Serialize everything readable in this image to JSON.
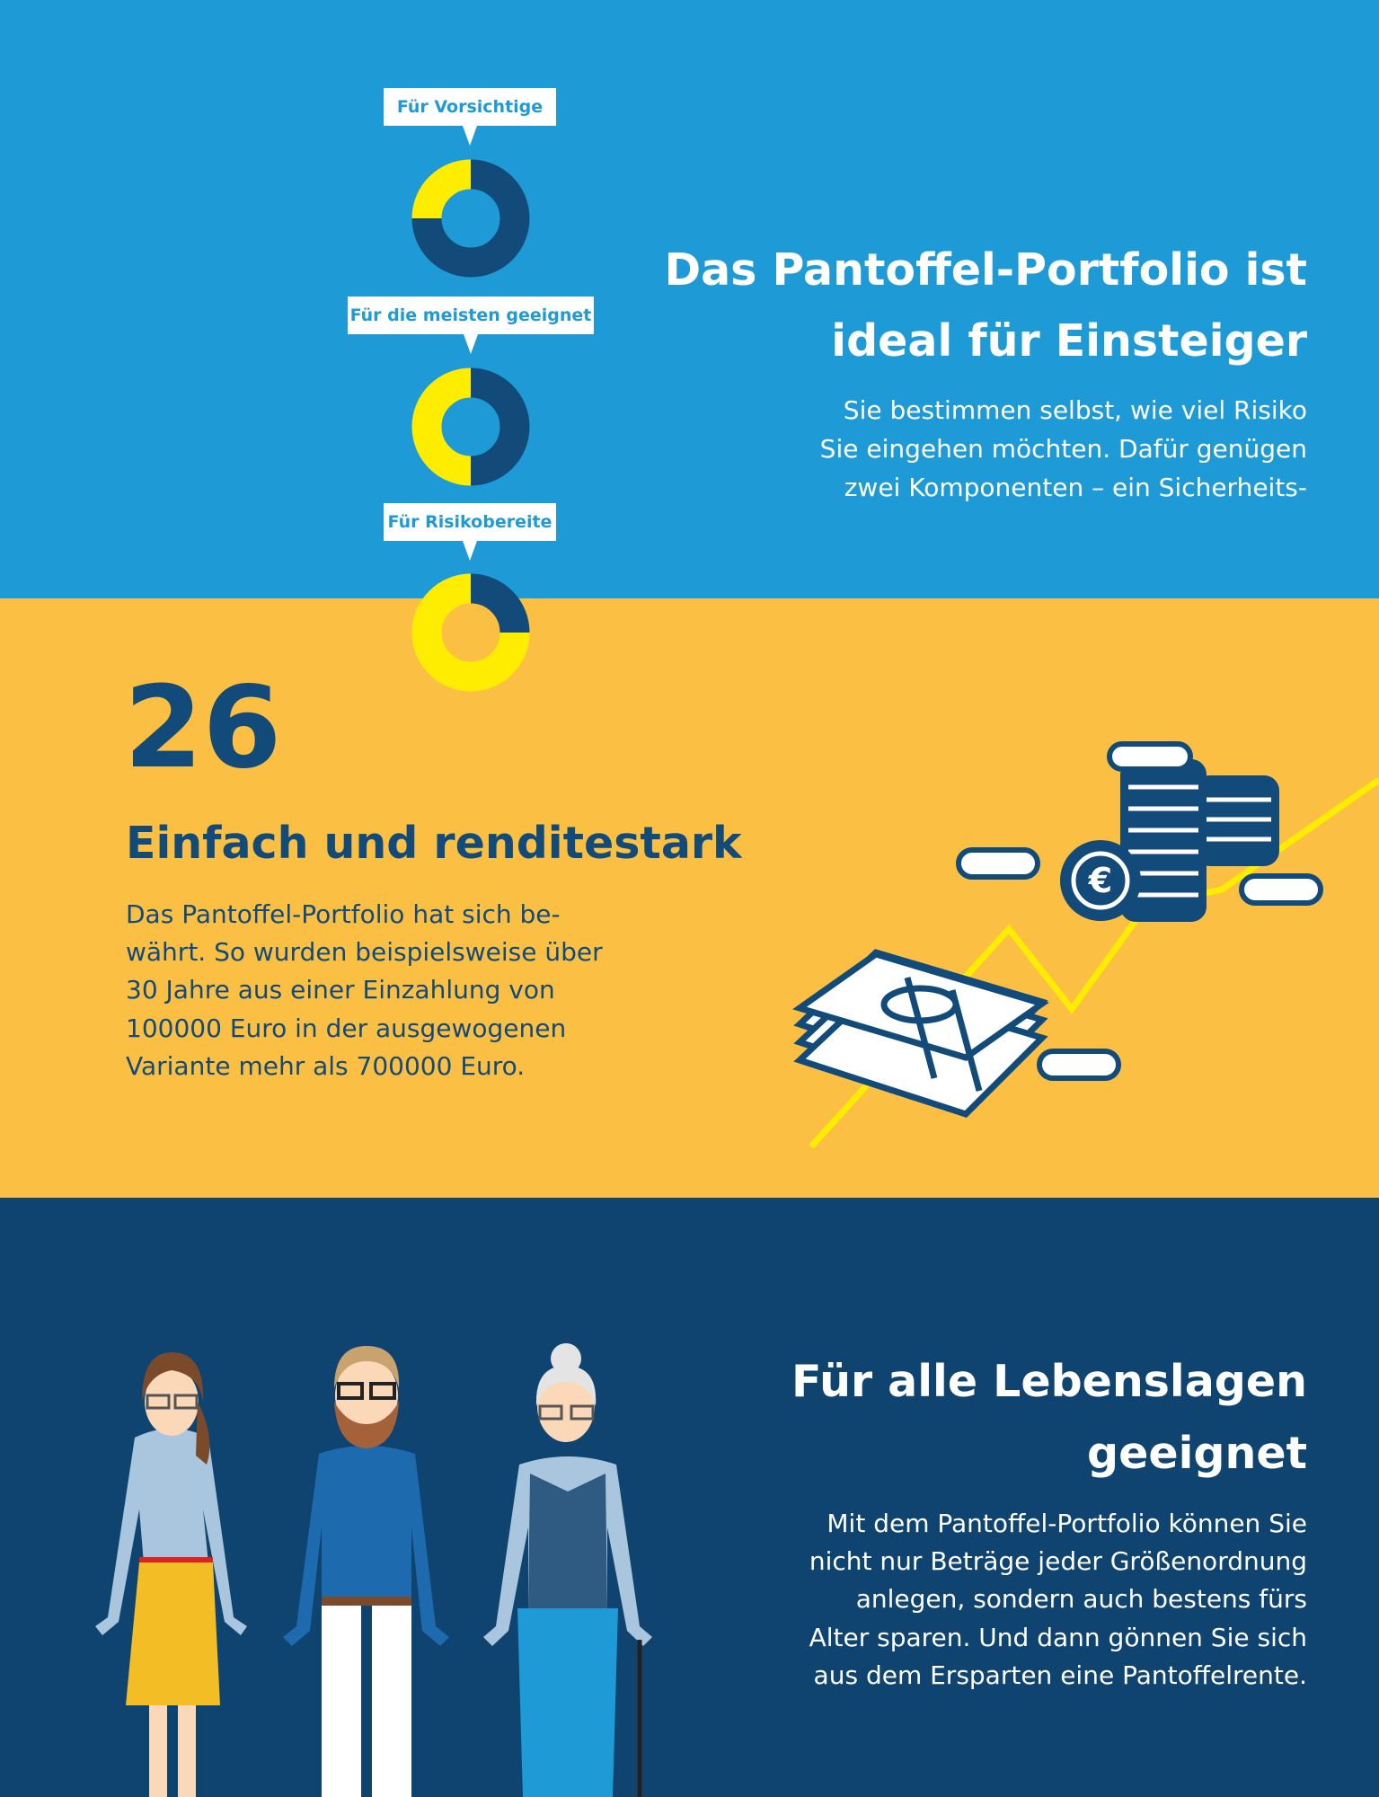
{
  "colors": {
    "blue": "#1E9BD7",
    "yellow_bg": "#FBC043",
    "navy": "#0F4470",
    "donut_navy": "#124A7A",
    "donut_yellow": "#FFED00"
  },
  "portfolio": {
    "donuts": [
      {
        "label": "Für Vorsichtige",
        "yellow_share": 0.25,
        "navy_share": 0.75
      },
      {
        "label": "Für die meisten geeignet",
        "yellow_share": 0.5,
        "navy_share": 0.5
      },
      {
        "label": "Für Risikobereite",
        "yellow_share": 0.75,
        "navy_share": 0.25
      }
    ],
    "title_lines": [
      "Das Pantoffel-Portfolio ist",
      "ideal für Einsteiger"
    ],
    "body_lines": [
      "Sie bestimmen selbst, wie viel Risiko",
      "Sie eingehen möchten. Dafür genügen",
      "zwei Komponenten – ein Sicherheits-"
    ]
  },
  "returns": {
    "number": "26",
    "title": "Einfach und renditestark",
    "body_lines": [
      "Das Pantoffel-Portfolio hat sich be-",
      "währt. So wurden beispielsweise über",
      "30 Jahre aus einer Einzahlung von",
      "100000 Euro in der ausgewogenen",
      "Variante mehr als 700000 Euro."
    ],
    "illustration": "coins-banknotes-rising-line",
    "currency_symbol": "€"
  },
  "life": {
    "title_lines": [
      "Für alle Lebenslagen",
      "geeignet"
    ],
    "body_lines": [
      "Mit dem Pantoffel-Portfolio können Sie",
      "nicht nur Beträge jeder Größenordnung",
      "anlegen, sondern auch bestens fürs",
      "Alter sparen. Und dann gönnen Sie sich",
      "aus dem Ersparten eine Pantoffelrente."
    ],
    "illustration": "three-people-woman-man-senior"
  }
}
